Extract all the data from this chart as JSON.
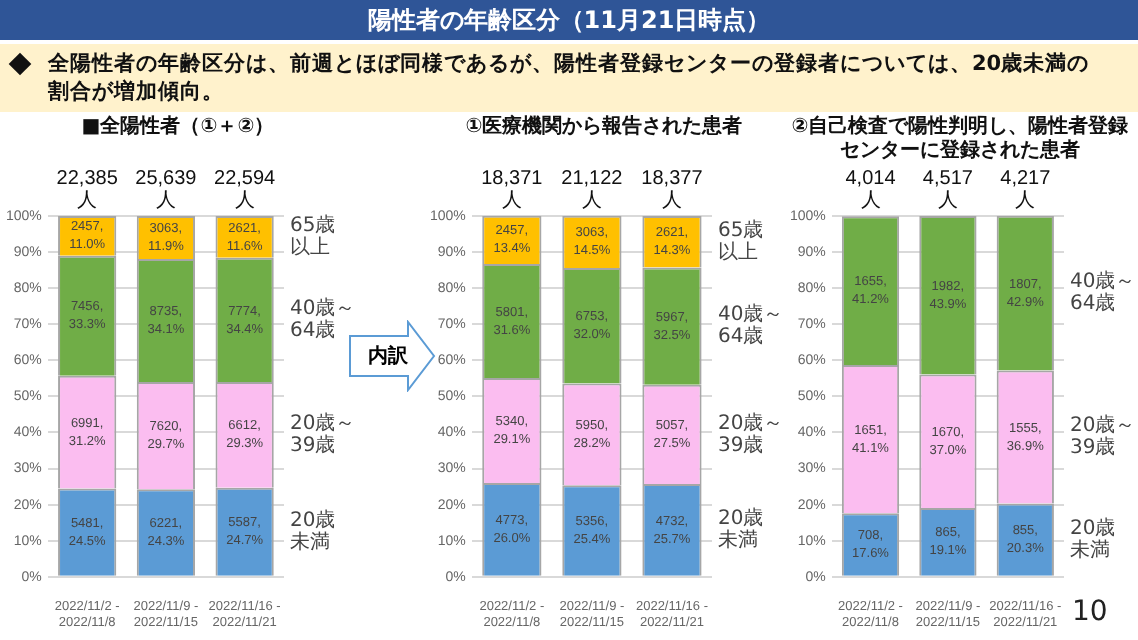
{
  "chart_data": [
    {
      "type": "other",
      "title": "陽性者の年齢区分（11月21日時点）",
      "annotations": [
        "全陽性者の年齢区分は、前週とほぼ同様であるが、陽性者登録センターの登録者については、20歳未満の割合が増加傾向。",
        "内訳",
        "10"
      ]
    },
    {
      "type": "bar",
      "title": "■全陽性者（①＋②）",
      "stacked": true,
      "grid": "y",
      "legend": "right",
      "categories": [
        "2022/11/2 - 2022/11/8",
        "2022/11/9 - 2022/11/15",
        "2022/11/16 - 2022/11/21"
      ],
      "ylim": [
        0,
        100
      ],
      "yticks": [
        {
          "value": 0,
          "label": "0%"
        },
        {
          "value": 10,
          "label": "10%"
        },
        {
          "value": 20,
          "label": "20%"
        },
        {
          "value": 30,
          "label": "30%"
        },
        {
          "value": 40,
          "label": "40%"
        },
        {
          "value": 50,
          "label": "50%"
        },
        {
          "value": 60,
          "label": "60%"
        },
        {
          "value": 70,
          "label": "70%"
        },
        {
          "value": 80,
          "label": "80%"
        },
        {
          "value": 90,
          "label": "90%"
        },
        {
          "value": 100,
          "label": "100%"
        }
      ],
      "annotations": [
        {
          "text": "22,385人",
          "x": "2022/11/2 - 2022/11/8",
          "y": 100
        },
        {
          "text": "25,639人",
          "x": "2022/11/9 - 2022/11/15",
          "y": 100
        },
        {
          "text": "22,594人",
          "x": "2022/11/16 - 2022/11/21",
          "y": 100
        }
      ],
      "series": [
        {
          "name": "20歳未満",
          "color": "#5b9bd5",
          "values": [
            24.5,
            24.3,
            24.7
          ],
          "value_labels": [
            "5481, 24.5%",
            "6221, 24.3%",
            "5587, 24.7%"
          ]
        },
        {
          "name": "20歳～39歳",
          "color": "#fbbdf0",
          "values": [
            31.2,
            29.7,
            29.3
          ],
          "value_labels": [
            "6991, 31.2%",
            "7620, 29.7%",
            "6612, 29.3%"
          ]
        },
        {
          "name": "40歳～64歳",
          "color": "#70ad47",
          "values": [
            33.3,
            34.1,
            34.4
          ],
          "value_labels": [
            "7456, 33.3%",
            "8735, 34.1%",
            "7774, 34.4%"
          ]
        },
        {
          "name": "65歳以上",
          "color": "#ffc000",
          "values": [
            11.0,
            11.9,
            11.6
          ],
          "value_labels": [
            "2457, 11.0%",
            "3063, 11.9%",
            "2621, 11.6%"
          ]
        }
      ]
    },
    {
      "type": "bar",
      "title": "①医療機関から報告された患者",
      "stacked": true,
      "grid": "y",
      "legend": "right",
      "categories": [
        "2022/11/2 - 2022/11/8",
        "2022/11/9 - 2022/11/15",
        "2022/11/16 - 2022/11/21"
      ],
      "ylim": [
        0,
        100
      ],
      "yticks": [
        {
          "value": 0,
          "label": "0%"
        },
        {
          "value": 10,
          "label": "10%"
        },
        {
          "value": 20,
          "label": "20%"
        },
        {
          "value": 30,
          "label": "30%"
        },
        {
          "value": 40,
          "label": "40%"
        },
        {
          "value": 50,
          "label": "50%"
        },
        {
          "value": 60,
          "label": "60%"
        },
        {
          "value": 70,
          "label": "70%"
        },
        {
          "value": 80,
          "label": "80%"
        },
        {
          "value": 90,
          "label": "90%"
        },
        {
          "value": 100,
          "label": "100%"
        }
      ],
      "annotations": [
        {
          "text": "18,371人",
          "x": "2022/11/2 - 2022/11/8",
          "y": 100
        },
        {
          "text": "21,122人",
          "x": "2022/11/9 - 2022/11/15",
          "y": 100
        },
        {
          "text": "18,377人",
          "x": "2022/11/16 - 2022/11/21",
          "y": 100
        }
      ],
      "series": [
        {
          "name": "20歳未満",
          "color": "#5b9bd5",
          "values": [
            26.0,
            25.4,
            25.7
          ],
          "value_labels": [
            "4773, 26.0%",
            "5356, 25.4%",
            "4732, 25.7%"
          ]
        },
        {
          "name": "20歳～39歳",
          "color": "#fbbdf0",
          "values": [
            29.1,
            28.2,
            27.5
          ],
          "value_labels": [
            "5340, 29.1%",
            "5950, 28.2%",
            "5057, 27.5%"
          ]
        },
        {
          "name": "40歳～64歳",
          "color": "#70ad47",
          "values": [
            31.6,
            32.0,
            32.5
          ],
          "value_labels": [
            "5801, 31.6%",
            "6753, 32.0%",
            "5967, 32.5%"
          ]
        },
        {
          "name": "65歳以上",
          "color": "#ffc000",
          "values": [
            13.4,
            14.5,
            14.3
          ],
          "value_labels": [
            "2457, 13.4%",
            "3063, 14.5%",
            "2621, 14.3%"
          ]
        }
      ]
    },
    {
      "type": "bar",
      "title": "②自己検査で陽性判明し、陽性者登録センターに登録された患者",
      "stacked": true,
      "grid": "y",
      "legend": "right",
      "categories": [
        "2022/11/2 - 2022/11/8",
        "2022/11/9 - 2022/11/15",
        "2022/11/16 - 2022/11/21"
      ],
      "ylim": [
        0,
        100
      ],
      "yticks": [
        {
          "value": 0,
          "label": "0%"
        },
        {
          "value": 10,
          "label": "10%"
        },
        {
          "value": 20,
          "label": "20%"
        },
        {
          "value": 30,
          "label": "30%"
        },
        {
          "value": 40,
          "label": "40%"
        },
        {
          "value": 50,
          "label": "50%"
        },
        {
          "value": 60,
          "label": "60%"
        },
        {
          "value": 70,
          "label": "70%"
        },
        {
          "value": 80,
          "label": "80%"
        },
        {
          "value": 90,
          "label": "90%"
        },
        {
          "value": 100,
          "label": "100%"
        }
      ],
      "annotations": [
        {
          "text": "4,014人",
          "x": "2022/11/2 - 2022/11/8",
          "y": 100
        },
        {
          "text": "4,517人",
          "x": "2022/11/9 - 2022/11/15",
          "y": 100
        },
        {
          "text": "4,217人",
          "x": "2022/11/16 - 2022/11/21",
          "y": 100
        }
      ],
      "series": [
        {
          "name": "20歳未満",
          "color": "#5b9bd5",
          "values": [
            17.6,
            19.1,
            20.3
          ],
          "value_labels": [
            "708, 17.6%",
            "865, 19.1%",
            "855, 20.3%"
          ]
        },
        {
          "name": "20歳～39歳",
          "color": "#fbbdf0",
          "values": [
            41.1,
            37.0,
            36.9
          ],
          "value_labels": [
            "1651, 41.1%",
            "1670, 37.0%",
            "1555, 36.9%"
          ]
        },
        {
          "name": "40歳～64歳",
          "color": "#70ad47",
          "values": [
            41.2,
            43.9,
            42.9
          ],
          "value_labels": [
            "1655, 41.2%",
            "1982, 43.9%",
            "1807, 42.9%"
          ]
        }
      ]
    }
  ]
}
